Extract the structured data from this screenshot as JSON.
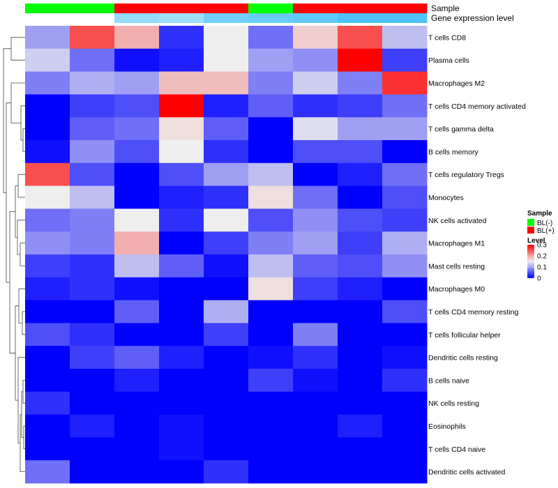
{
  "chart_data": {
    "type": "heatmap",
    "annotation_labels": {
      "sample": "Sample",
      "gene_expression": "Gene expression level"
    },
    "columns": [
      {
        "sample": "BL(-)",
        "gene_expression": 0.0
      },
      {
        "sample": "BL(-)",
        "gene_expression": 0.0
      },
      {
        "sample": "BL(+)",
        "gene_expression": 0.6
      },
      {
        "sample": "BL(+)",
        "gene_expression": 0.55
      },
      {
        "sample": "BL(+)",
        "gene_expression": 0.8
      },
      {
        "sample": "BL(-)",
        "gene_expression": 0.85
      },
      {
        "sample": "BL(+)",
        "gene_expression": 0.9
      },
      {
        "sample": "BL(+)",
        "gene_expression": 1.0
      },
      {
        "sample": "BL(+)",
        "gene_expression": 1.0
      }
    ],
    "rows": [
      "T cells CD8",
      "Plasma cells",
      "Macrophages M2",
      "T cells CD4 memory activated",
      "T cells gamma delta",
      "B cells memory",
      "T cells regulatory  Tregs",
      "Monocytes",
      "NK cells activated",
      "Macrophages M1",
      "Mast cells resting",
      "Macrophages M0",
      "T cells CD4 memory resting",
      "T cells follicular helper",
      "Dendritic cells resting",
      "B cells naive",
      "NK cells resting",
      "Eosinophils",
      "T cells CD4 naive",
      "Dendritic cells activated"
    ],
    "values": [
      [
        0.1,
        0.25,
        0.19,
        0.03,
        0.15,
        0.07,
        0.17,
        0.25,
        0.12
      ],
      [
        0.13,
        0.07,
        0.01,
        0.02,
        0.15,
        0.1,
        0.09,
        0.3,
        0.04
      ],
      [
        0.08,
        0.11,
        0.1,
        0.18,
        0.18,
        0.08,
        0.13,
        0.08,
        0.27
      ],
      [
        0.0,
        0.04,
        0.05,
        0.3,
        0.02,
        0.06,
        0.03,
        0.04,
        0.07
      ],
      [
        0.0,
        0.06,
        0.07,
        0.16,
        0.06,
        0.0,
        0.14,
        0.1,
        0.1
      ],
      [
        0.01,
        0.09,
        0.05,
        0.15,
        0.03,
        0.0,
        0.05,
        0.05,
        0.0
      ],
      [
        0.25,
        0.05,
        0.0,
        0.05,
        0.1,
        0.12,
        0.0,
        0.02,
        0.07
      ],
      [
        0.15,
        0.12,
        0.0,
        0.02,
        0.03,
        0.16,
        0.07,
        0.0,
        0.05
      ],
      [
        0.07,
        0.08,
        0.15,
        0.03,
        0.15,
        0.05,
        0.09,
        0.05,
        0.04
      ],
      [
        0.09,
        0.08,
        0.19,
        0.0,
        0.04,
        0.08,
        0.1,
        0.04,
        0.11
      ],
      [
        0.04,
        0.03,
        0.12,
        0.06,
        0.01,
        0.12,
        0.06,
        0.05,
        0.09
      ],
      [
        0.02,
        0.03,
        0.01,
        0.0,
        0.0,
        0.16,
        0.04,
        0.02,
        0.0
      ],
      [
        0.0,
        0.0,
        0.06,
        0.0,
        0.11,
        0.0,
        0.0,
        0.0,
        0.05
      ],
      [
        0.05,
        0.03,
        0.0,
        0.0,
        0.04,
        0.0,
        0.08,
        0.0,
        0.0
      ],
      [
        0.0,
        0.04,
        0.06,
        0.02,
        0.0,
        0.01,
        0.03,
        0.0,
        0.01
      ],
      [
        0.0,
        0.0,
        0.02,
        0.0,
        0.0,
        0.04,
        0.01,
        0.0,
        0.03
      ],
      [
        0.03,
        0.0,
        0.0,
        0.0,
        0.0,
        0.0,
        0.0,
        0.0,
        0.0
      ],
      [
        0.0,
        0.02,
        0.0,
        0.01,
        0.0,
        0.0,
        0.0,
        0.02,
        0.0
      ],
      [
        0.0,
        0.0,
        0.0,
        0.01,
        0.0,
        0.0,
        0.0,
        0.0,
        0.0
      ],
      [
        0.07,
        0.0,
        0.0,
        0.0,
        0.03,
        0.0,
        0.0,
        0.0,
        0.0
      ]
    ],
    "color_scale": {
      "low": "#0000FF",
      "mid": "#EEEEEE",
      "high": "#FF0000",
      "min": 0,
      "mid_value": 0.15,
      "max": 0.3
    },
    "legend": {
      "sample_title": "Sample",
      "sample_items": [
        {
          "label": "BL(-)",
          "color": "#00FF00"
        },
        {
          "label": "BL(+)",
          "color": "#FF0000"
        }
      ],
      "level_title": "Level",
      "level_ticks": [
        "0.3",
        "0.2",
        "0.1",
        "0"
      ],
      "position": "right"
    },
    "gene_expression_colors": {
      "low": "#FFFFFF",
      "high": "#4FC3F7"
    },
    "dendrogram": "rows"
  }
}
